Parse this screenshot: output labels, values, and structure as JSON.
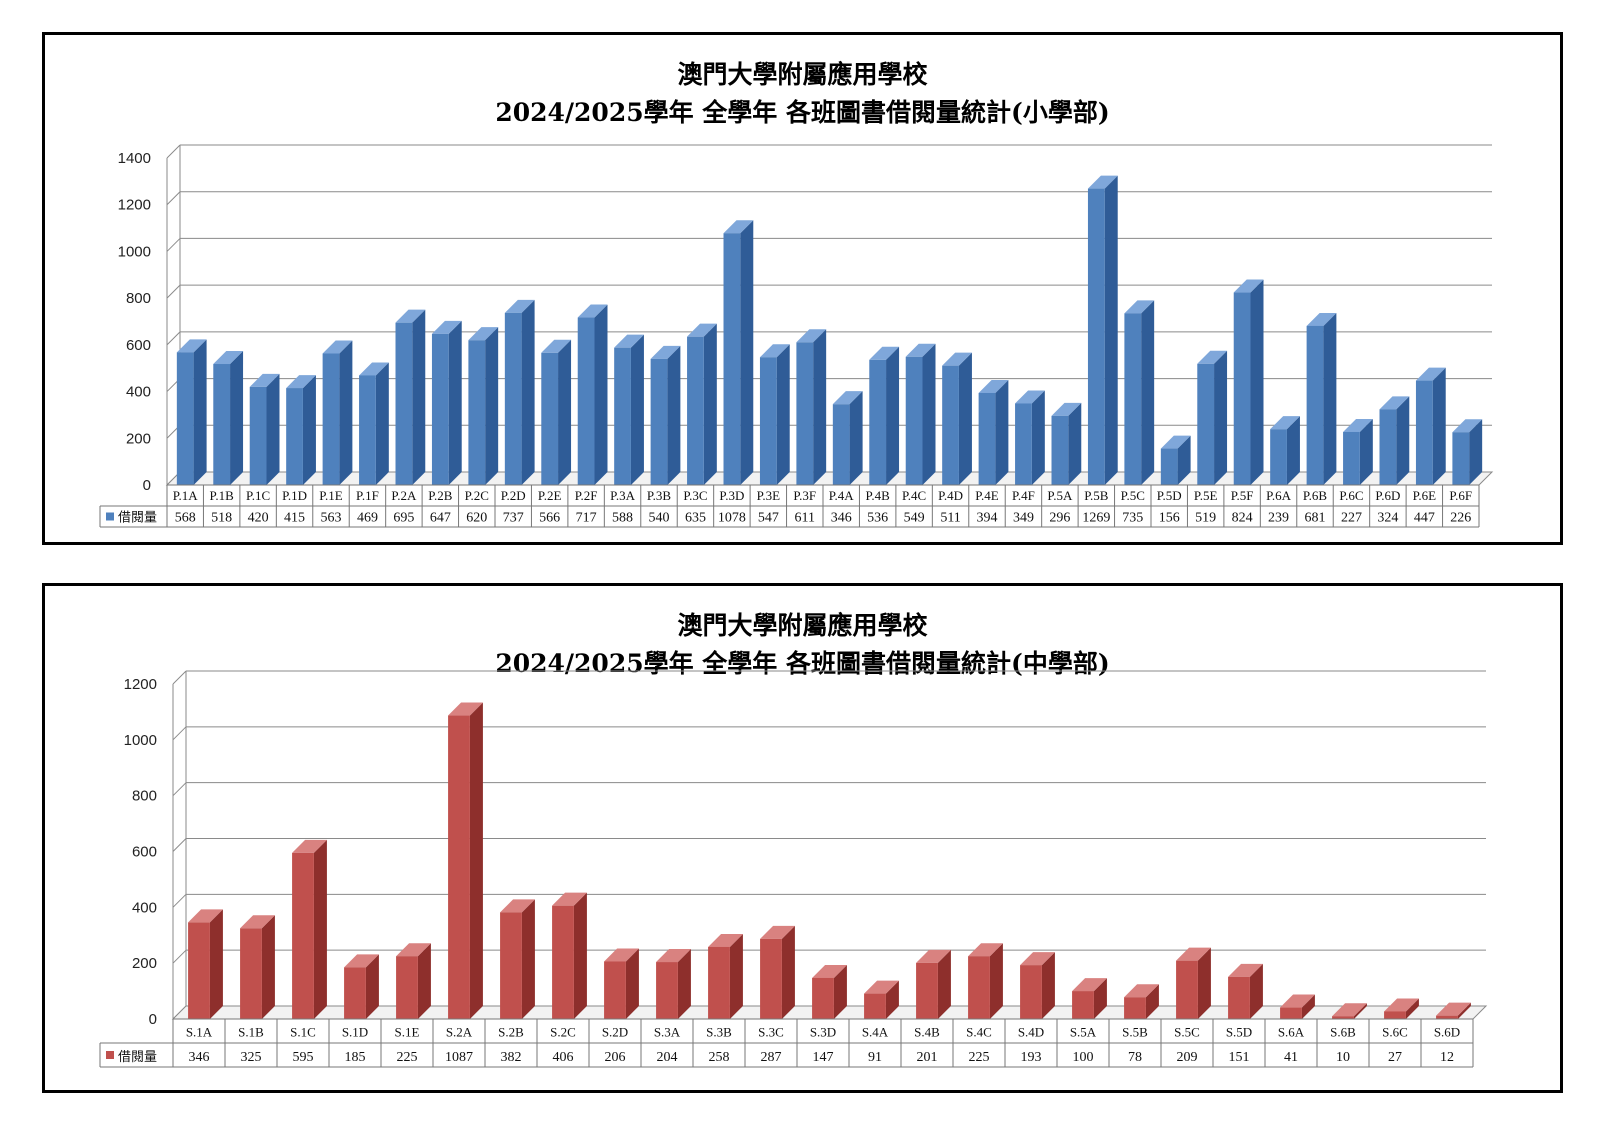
{
  "chart_data": [
    {
      "type": "bar",
      "title": "澳門大學附屬應用學校",
      "subtitle": "2024/2025學年  全學年  各班圖書借閱量統計(小學部)",
      "categories": [
        "P.1A",
        "P.1B",
        "P.1C",
        "P.1D",
        "P.1E",
        "P.1F",
        "P.2A",
        "P.2B",
        "P.2C",
        "P.2D",
        "P.2E",
        "P.2F",
        "P.3A",
        "P.3B",
        "P.3C",
        "P.3D",
        "P.3E",
        "P.3F",
        "P.4A",
        "P.4B",
        "P.4C",
        "P.4D",
        "P.4E",
        "P.4F",
        "P.5A",
        "P.5B",
        "P.5C",
        "P.5D",
        "P.5E",
        "P.5F",
        "P.6A",
        "P.6B",
        "P.6C",
        "P.6D",
        "P.6E",
        "P.6F"
      ],
      "series": [
        {
          "name": "借閱量",
          "values": [
            568,
            518,
            420,
            415,
            563,
            469,
            695,
            647,
            620,
            737,
            566,
            717,
            588,
            540,
            635,
            1078,
            547,
            611,
            346,
            536,
            549,
            511,
            394,
            349,
            296,
            1269,
            735,
            156,
            519,
            824,
            239,
            681,
            227,
            324,
            447,
            226
          ]
        }
      ],
      "ylim": [
        0,
        1400
      ],
      "yticks": [
        0,
        200,
        400,
        600,
        800,
        1000,
        1200,
        1400
      ],
      "grid": true,
      "legend": "data-table-left",
      "color": "#4F81BD",
      "color_side": "#2F5C97",
      "color_top": "#7FA7DA"
    },
    {
      "type": "bar",
      "title": "澳門大學附屬應用學校",
      "subtitle": "2024/2025學年  全學年  各班圖書借閱量統計(中學部)",
      "categories": [
        "S.1A",
        "S.1B",
        "S.1C",
        "S.1D",
        "S.1E",
        "S.2A",
        "S.2B",
        "S.2C",
        "S.2D",
        "S.3A",
        "S.3B",
        "S.3C",
        "S.3D",
        "S.4A",
        "S.4B",
        "S.4C",
        "S.4D",
        "S.5A",
        "S.5B",
        "S.5C",
        "S.5D",
        "S.6A",
        "S.6B",
        "S.6C",
        "S.6D"
      ],
      "series": [
        {
          "name": "借閱量",
          "values": [
            346,
            325,
            595,
            185,
            225,
            1087,
            382,
            406,
            206,
            204,
            258,
            287,
            147,
            91,
            201,
            225,
            193,
            100,
            78,
            209,
            151,
            41,
            10,
            27,
            12
          ]
        }
      ],
      "ylim": [
        0,
        1200
      ],
      "yticks": [
        0,
        200,
        400,
        600,
        800,
        1000,
        1200
      ],
      "grid": true,
      "legend": "data-table-left",
      "color": "#C0504D",
      "color_side": "#8E2F2C",
      "color_top": "#D98280"
    }
  ]
}
